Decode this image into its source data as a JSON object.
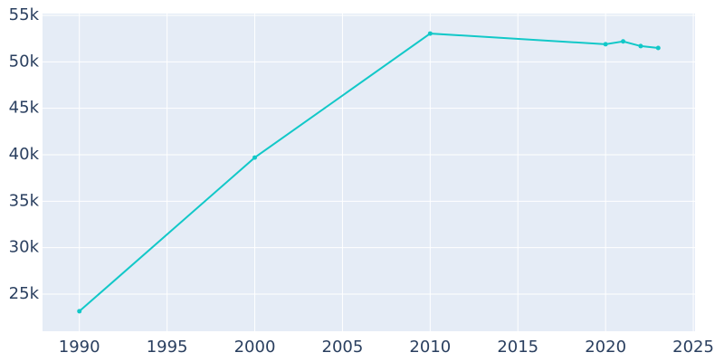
{
  "chart_data": {
    "type": "line",
    "x": [
      1990,
      2000,
      2010,
      2020,
      2021,
      2022,
      2023
    ],
    "values": [
      23150,
      39700,
      53050,
      51900,
      52200,
      51700,
      51500
    ],
    "color": "#12c8c8",
    "xlim": [
      1987.9,
      2025.1
    ],
    "xticks": [
      1990,
      1995,
      2000,
      2005,
      2010,
      2015,
      2020,
      2025
    ],
    "ylim": [
      21000,
      55200
    ],
    "yticks": [
      {
        "value": 25000,
        "label": "25k"
      },
      {
        "value": 30000,
        "label": "30k"
      },
      {
        "value": 35000,
        "label": "35k"
      },
      {
        "value": 40000,
        "label": "40k"
      },
      {
        "value": 45000,
        "label": "45k"
      },
      {
        "value": 50000,
        "label": "50k"
      },
      {
        "value": 55000,
        "label": "55k"
      }
    ],
    "grid": true
  }
}
